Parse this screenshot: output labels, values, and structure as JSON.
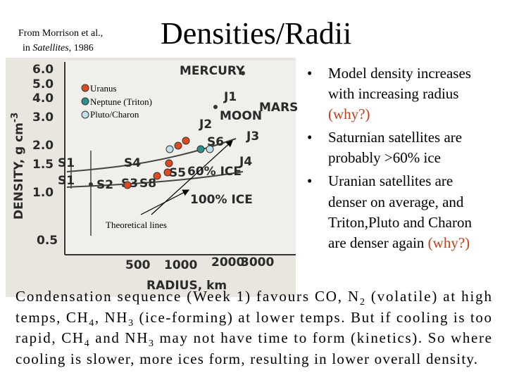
{
  "header": {
    "citation_line1": "From Morrison et al.,",
    "citation_line2": [
      {
        "t": "in "
      },
      {
        "italic": "Satellites"
      },
      {
        "t": ", 1986"
      }
    ],
    "title": "Densities/Radii"
  },
  "figure": {
    "y_label": "DENSITY, g cm",
    "y_label_exponent": "-3",
    "x_label": "RADIUS, km",
    "yticks": [
      "6.0",
      "5.0",
      "4.0",
      "3.0",
      "2.0",
      "1.5",
      "1.0",
      "0.5"
    ],
    "xticks": [
      "500",
      "1000",
      "2000",
      "3000"
    ],
    "labels": [
      "MERCURY",
      "J1",
      "MOON",
      "MARS",
      "J2",
      "S6",
      "J3",
      "J4",
      "S4",
      "S1",
      "S1",
      "S2",
      "S3",
      "S8",
      "S5",
      "60% ICE",
      "100% ICE"
    ],
    "legend": [
      "Uranus",
      "Neptune (Triton)",
      "Pluto/Charon"
    ],
    "annotation": "Theoretical lines"
  },
  "bullets": [
    {
      "lines": [
        "Model density increases",
        "with increasing radius"
      ],
      "note": "(why?)"
    },
    {
      "lines": [
        "Saturnian satellites are",
        "probably >60% ice"
      ]
    },
    {
      "lines": [
        "Uranian satellites are",
        "denser on average, and",
        "Triton,Pluto and Charon",
        "are denser again "
      ],
      "note": "(why?)"
    }
  ],
  "paragraph": {
    "lines": [
      [
        {
          "t": "Condensation sequence (Week 1) favours CO, N"
        },
        {
          "sub": "2"
        },
        {
          "t": " (volatile) at high"
        }
      ],
      [
        {
          "t": "temps, CH"
        },
        {
          "sub": "4"
        },
        {
          "t": ", NH"
        },
        {
          "sub": "3"
        },
        {
          "t": " (ice-forming) at lower temps. But if cooling is too"
        }
      ],
      [
        {
          "t": "rapid, CH"
        },
        {
          "sub": "4"
        },
        {
          "t": " and NH"
        },
        {
          "sub": "3"
        },
        {
          "t": " may not have time to form (kinetics). So where"
        }
      ],
      [
        {
          "t": "cooling is slower, more ices form, resulting in lower overall density."
        }
      ]
    ]
  }
}
